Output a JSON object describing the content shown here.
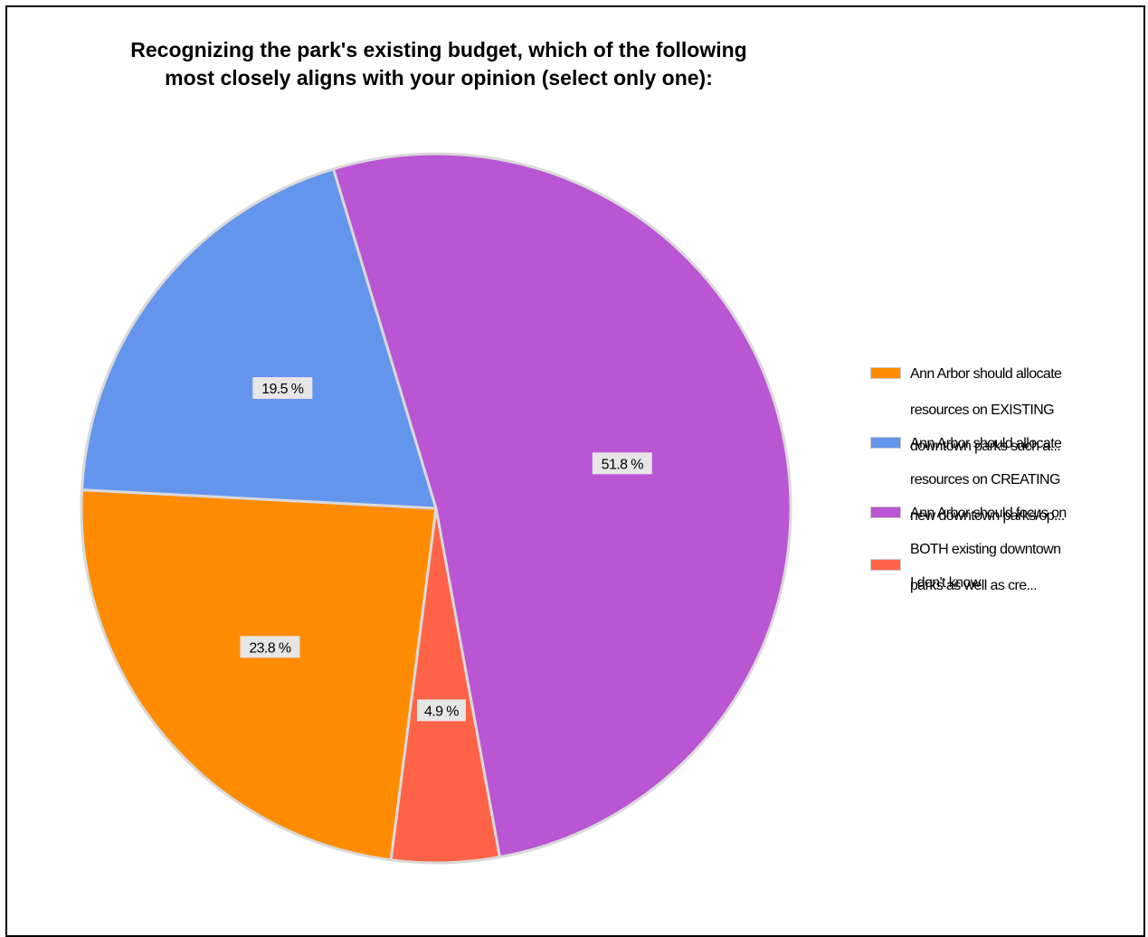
{
  "chart_data": {
    "type": "pie",
    "title_lines": [
      "Recognizing the park's existing budget, which of the following",
      "most closely aligns with your opinion (select only one):"
    ],
    "series": [
      {
        "name": "Ann Arbor should allocate resources on EXISTING downtown parks such a...",
        "value": 23.8,
        "label": "23.8 %",
        "color": "#FF8C00"
      },
      {
        "name": "Ann Arbor should allocate resources on CREATING new downtown parks/op...",
        "value": 19.5,
        "label": "19.5 %",
        "color": "#6495ED"
      },
      {
        "name": "Ann Arbor should focus on BOTH existing downtown parks as well as cre...",
        "value": 51.8,
        "label": "51.8 %",
        "color": "#BA55D3"
      },
      {
        "name": "I don't know",
        "value": 4.9,
        "label": "4.9 %",
        "color": "#FF6347"
      }
    ],
    "legend_lines": [
      [
        "Ann Arbor should allocate",
        "resources on EXISTING",
        "downtown parks such a..."
      ],
      [
        "Ann Arbor should allocate",
        "resources on CREATING",
        "new downtown parks/op..."
      ],
      [
        "Ann Arbor should focus on",
        "BOTH existing downtown",
        "parks as well as cre..."
      ],
      [
        "I don't know"
      ]
    ],
    "legend_position": "right",
    "slice_border_color": "#D9D9D9",
    "label_background": "#E6E6E6"
  }
}
